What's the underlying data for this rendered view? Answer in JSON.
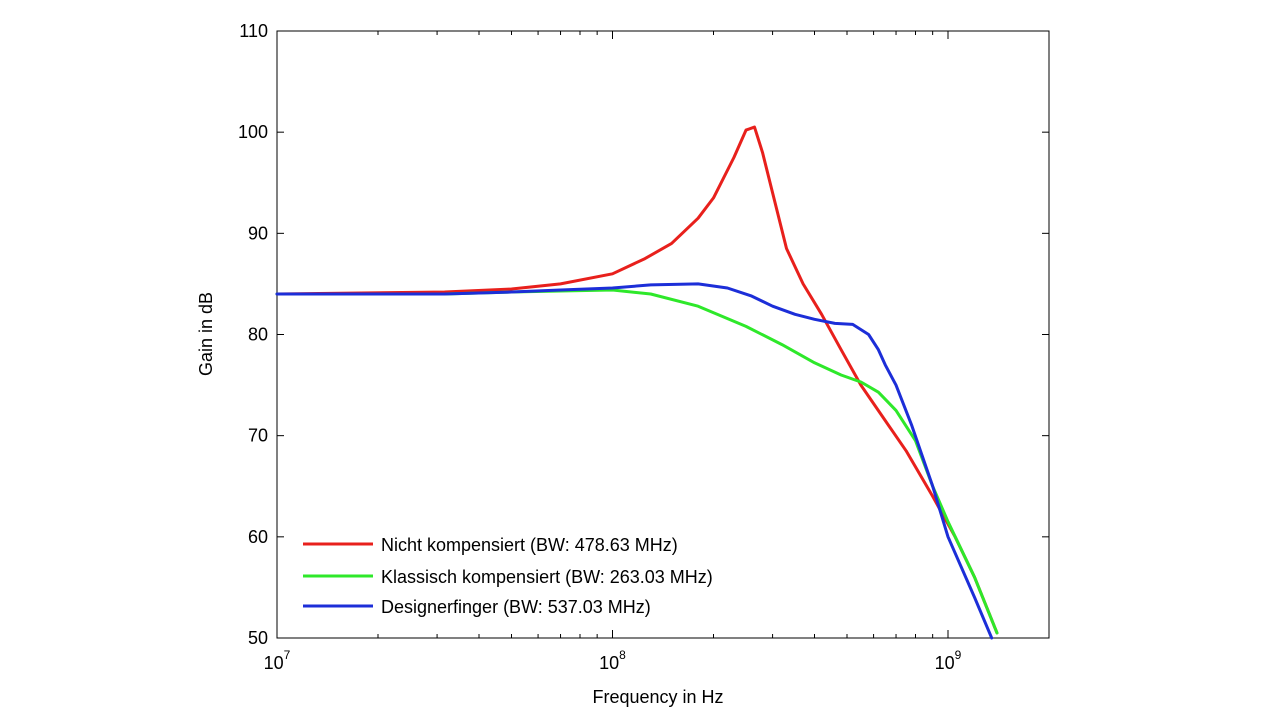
{
  "chart_data": {
    "type": "line",
    "title": "",
    "xlabel": "Frequency in Hz",
    "ylabel": "Gain in dB",
    "xscale": "log",
    "xlim": [
      10000000,
      2000000000
    ],
    "ylim": [
      50,
      110
    ],
    "x_ticks": [
      {
        "value": 10000000,
        "base": "10",
        "exp": "7"
      },
      {
        "value": 100000000,
        "base": "10",
        "exp": "8"
      },
      {
        "value": 1000000000,
        "base": "10",
        "exp": "9"
      }
    ],
    "y_ticks": [
      50,
      60,
      70,
      80,
      90,
      100,
      110
    ],
    "y_tick_labels": [
      "50",
      "60",
      "70",
      "80",
      "90",
      "100",
      "110"
    ],
    "grid": false,
    "legend_position": "bottom-left",
    "series": [
      {
        "name": "Nicht kompensiert (BW: 478.63 MHz)",
        "color": "#e8201c",
        "x": [
          10000000,
          31600000,
          50000000,
          70000000,
          100000000,
          125000000,
          150000000,
          180000000,
          200000000,
          230000000,
          250000000,
          265000000,
          280000000,
          300000000,
          330000000,
          370000000,
          420000000,
          480000000,
          550000000,
          650000000,
          750000000,
          900000000,
          1050000000,
          1200000000,
          1400000000
        ],
        "y": [
          84.0,
          84.2,
          84.5,
          85.0,
          86.0,
          87.5,
          89.0,
          91.5,
          93.5,
          97.5,
          100.2,
          100.5,
          98.0,
          94.0,
          88.5,
          85.0,
          82.0,
          78.5,
          75.0,
          71.5,
          68.5,
          64.0,
          60.0,
          56.0,
          50.5
        ]
      },
      {
        "name": "Klassisch kompensiert (BW: 263.03 MHz)",
        "color": "#2ee82a",
        "x": [
          10000000,
          31600000,
          50000000,
          70000000,
          100000000,
          130000000,
          180000000,
          250000000,
          320000000,
          400000000,
          480000000,
          550000000,
          620000000,
          700000000,
          800000000,
          900000000,
          1000000000,
          1200000000,
          1400000000
        ],
        "y": [
          84.0,
          84.0,
          84.2,
          84.3,
          84.4,
          84.0,
          82.8,
          80.8,
          79.0,
          77.2,
          76.0,
          75.3,
          74.3,
          72.5,
          69.5,
          65.0,
          61.5,
          56.0,
          50.5
        ]
      },
      {
        "name": "Designerfinger (BW: 537.03 MHz)",
        "color": "#1c2ed8",
        "x": [
          10000000,
          31600000,
          50000000,
          70000000,
          100000000,
          130000000,
          180000000,
          220000000,
          260000000,
          300000000,
          350000000,
          400000000,
          460000000,
          520000000,
          580000000,
          620000000,
          650000000,
          700000000,
          780000000,
          900000000,
          1000000000,
          1200000000,
          1350000000
        ],
        "y": [
          84.0,
          84.0,
          84.2,
          84.4,
          84.6,
          84.9,
          85.0,
          84.6,
          83.8,
          82.8,
          82.0,
          81.5,
          81.1,
          81.0,
          80.0,
          78.5,
          77.0,
          75.0,
          71.0,
          65.0,
          60.0,
          54.0,
          50.0
        ]
      }
    ]
  }
}
